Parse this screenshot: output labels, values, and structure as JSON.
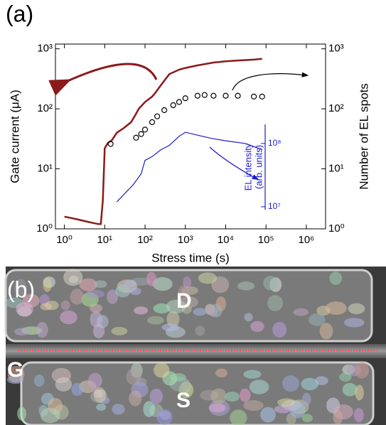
{
  "chart_data": {
    "type": "line",
    "panel_label": "(a)",
    "xlabel": "Stress time (s)",
    "ylabel": "Gate current (μA)",
    "y2label": "Number of EL spots",
    "y3label": [
      "EL intensity",
      "(arb. units)"
    ],
    "xscale": "log",
    "yscale": "log",
    "y2scale": "log",
    "y3scale": "log",
    "xlim": [
      0.6,
      3000000
    ],
    "ylim": [
      1,
      1200
    ],
    "y2lim": [
      1,
      1200
    ],
    "y3lim": [
      9000000,
      200000000
    ],
    "xticks": [
      {
        "value": 1,
        "label": "10⁰"
      },
      {
        "value": 10,
        "label": "10¹"
      },
      {
        "value": 100,
        "label": "10²"
      },
      {
        "value": 1000,
        "label": "10³"
      },
      {
        "value": 10000,
        "label": "10⁴"
      },
      {
        "value": 100000,
        "label": "10⁵"
      },
      {
        "value": 1000000,
        "label": "10⁶"
      }
    ],
    "yticks": [
      {
        "value": 1,
        "label": "10⁰"
      },
      {
        "value": 10,
        "label": "10¹"
      },
      {
        "value": 100,
        "label": "10²"
      },
      {
        "value": 1000,
        "label": "10³"
      }
    ],
    "y2ticks": [
      {
        "value": 1,
        "label": "10⁰"
      },
      {
        "value": 10,
        "label": "10¹"
      },
      {
        "value": 100,
        "label": "10²"
      },
      {
        "value": 1000,
        "label": "10³"
      }
    ],
    "y3ticks": [
      {
        "value": 10000000,
        "label": "10⁷"
      },
      {
        "value": 100000000,
        "label": "10⁸"
      }
    ],
    "series": [
      {
        "color": "#8b1a1a",
        "style": "line",
        "x": [
          1,
          2,
          4,
          7,
          8,
          9,
          10,
          12,
          15,
          20,
          30,
          45,
          55,
          70,
          100,
          150,
          180,
          250,
          400,
          700,
          1000,
          2000,
          5000,
          10000,
          20000,
          50000,
          80000
        ],
        "values": [
          1.6,
          1.45,
          1.3,
          1.2,
          1.2,
          3,
          22,
          27,
          30,
          40,
          48,
          60,
          75,
          100,
          130,
          160,
          185,
          250,
          380,
          450,
          480,
          530,
          590,
          620,
          640,
          660,
          680
        ]
      },
      {
        "color": "#000000",
        "style": "circles",
        "axis": "y2",
        "x": [
          14,
          60,
          80,
          100,
          150,
          200,
          300,
          500,
          700,
          1000,
          2000,
          3000,
          5000,
          10000,
          20000,
          50000,
          80000
        ],
        "values": [
          26,
          33,
          38,
          45,
          60,
          75,
          95,
          115,
          130,
          150,
          165,
          170,
          165,
          165,
          165,
          160,
          160
        ]
      },
      {
        "color": "#1a1acc",
        "style": "line",
        "axis": "y3",
        "x": [
          20,
          50,
          80,
          100,
          150,
          250,
          400,
          700,
          1000,
          2000,
          4500,
          10000,
          30000,
          80000
        ],
        "values": [
          12000000,
          22000000,
          33000000,
          54000000,
          62000000,
          80000000,
          93000000,
          130000000,
          150000000,
          135000000,
          120000000,
          110000000,
          100000000,
          80000000
        ]
      }
    ]
  },
  "image": {
    "panel_label": "(b)",
    "labels": [
      "D",
      "G",
      "S"
    ]
  }
}
